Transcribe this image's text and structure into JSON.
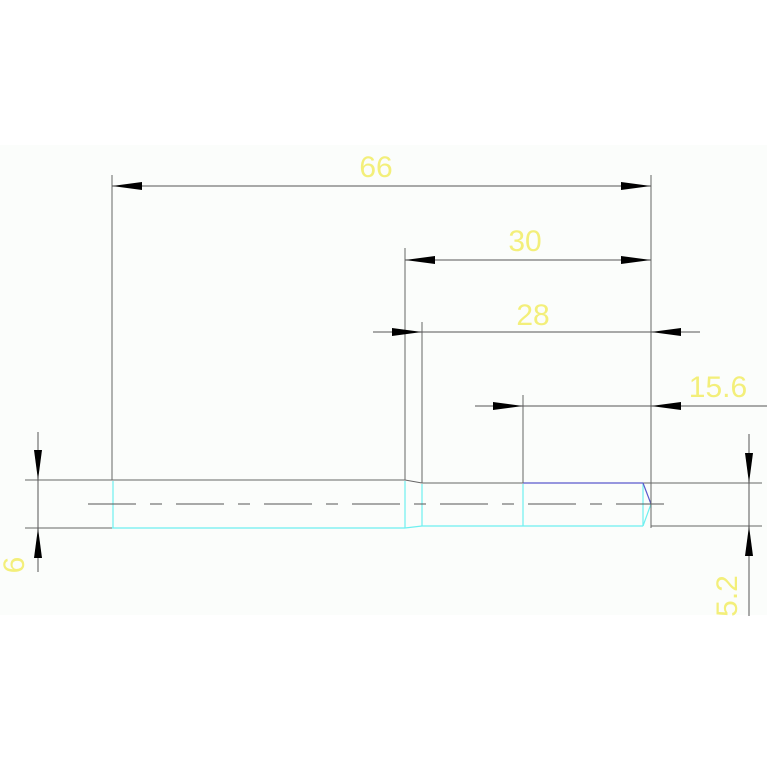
{
  "dimensions": {
    "overall_length": "66",
    "step_length": "30",
    "inner_length": "28",
    "end_length": "15.6",
    "left_diameter": "6",
    "right_diameter": "5.2"
  },
  "colors": {
    "text": "#f3ef7a",
    "outline": "#6ef0f0",
    "edge": "#5a5acc",
    "dimension_lines": "#555555"
  }
}
